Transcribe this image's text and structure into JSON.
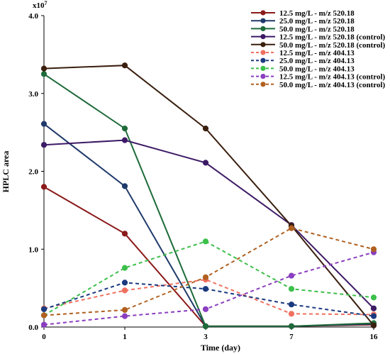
{
  "chart_data": {
    "type": "line",
    "xlabel": "Time (day)",
    "ylabel": "HPLC area",
    "y_multiplier_label": "x10",
    "y_multiplier_exp": "7",
    "x_categories": [
      "0",
      "1",
      "3",
      "7",
      "16"
    ],
    "y_ticks": [
      "0.0",
      "1.0",
      "2.0",
      "3.0",
      "4.0"
    ],
    "ylim": [
      0,
      4.0
    ],
    "grid": false,
    "legend_position": "top-right",
    "series": [
      {
        "name": "12.5 mg/L - m/z 520.18",
        "color": "#8b1a1a",
        "dashed": false,
        "values": [
          1.8,
          1.2,
          0.01,
          0.01,
          0.03
        ]
      },
      {
        "name": "25.0 mg/L - m/z 520.18",
        "color": "#1f3a6b",
        "dashed": false,
        "values": [
          2.61,
          1.81,
          0.01,
          0.01,
          0.04
        ]
      },
      {
        "name": "50.0 mg/L - m/z 520.18",
        "color": "#1e6b3a",
        "dashed": false,
        "values": [
          3.25,
          2.55,
          0.01,
          0.01,
          0.05
        ]
      },
      {
        "name": "12.5 mg/L - m/z 520.18 (control)",
        "color": "#3d1a66",
        "dashed": false,
        "values": [
          2.34,
          2.4,
          2.11,
          1.31,
          0.24
        ]
      },
      {
        "name": "50.0 mg/L - m/z 520.18 (control)",
        "color": "#3a1f0f",
        "dashed": false,
        "values": [
          3.32,
          3.36,
          2.55,
          1.3,
          0.02
        ]
      },
      {
        "name": "12.5 mg/L - m/z 404.13",
        "color": "#f07060",
        "dashed": true,
        "values": [
          0.24,
          0.47,
          0.61,
          0.17,
          0.16
        ]
      },
      {
        "name": "25.0 mg/L - m/z 404.13",
        "color": "#1a3a80",
        "dashed": true,
        "values": [
          0.23,
          0.57,
          0.49,
          0.29,
          0.14
        ]
      },
      {
        "name": "50.0 mg/L - m/z 404.13",
        "color": "#3cc04a",
        "dashed": true,
        "values": [
          0.15,
          0.76,
          1.1,
          0.49,
          0.38
        ]
      },
      {
        "name": "12.5 mg/L - m/z 404.13 (control)",
        "color": "#8a3ec0",
        "dashed": true,
        "values": [
          0.03,
          0.14,
          0.23,
          0.66,
          0.96
        ]
      },
      {
        "name": "50.0 mg/L - m/z 404.13 (control)",
        "color": "#b06020",
        "dashed": true,
        "values": [
          0.15,
          0.22,
          0.64,
          1.27,
          1.0
        ]
      }
    ]
  }
}
